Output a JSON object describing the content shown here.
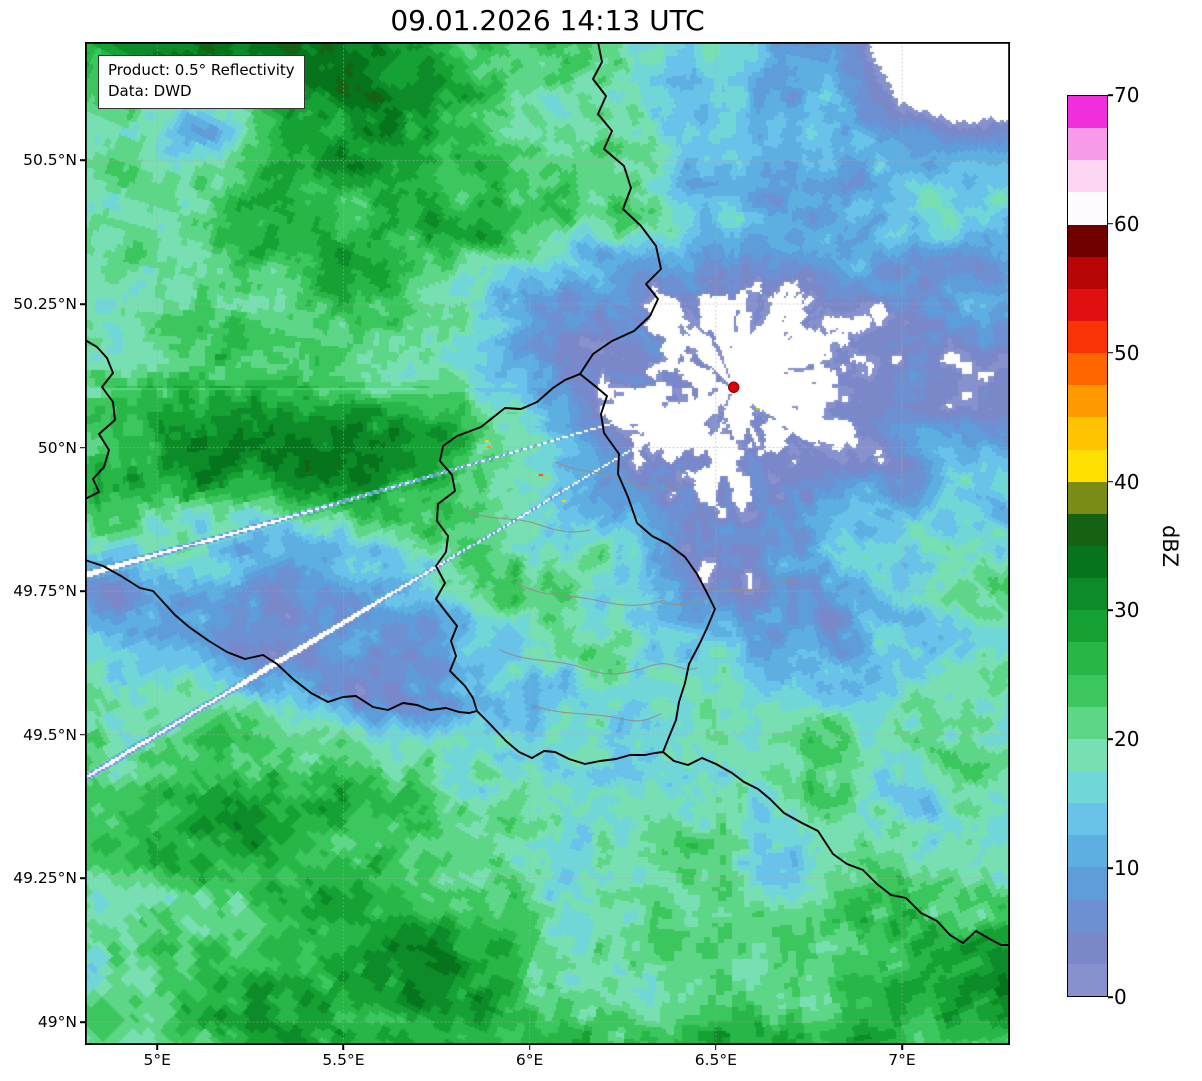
{
  "title": "09.01.2026 14:13 UTC",
  "info_box": {
    "line1": "Product: 0.5° Reflectivity",
    "line2": "Data: DWD"
  },
  "axes": {
    "extent": {
      "lon_min": 4.806,
      "lon_max": 7.29,
      "lat_min": 48.96,
      "lat_max": 50.706
    },
    "x_ticks": [
      {
        "label": "5°E",
        "lon": 5.0
      },
      {
        "label": "5.5°E",
        "lon": 5.5
      },
      {
        "label": "6°E",
        "lon": 6.0
      },
      {
        "label": "6.5°E",
        "lon": 6.5
      },
      {
        "label": "7°E",
        "lon": 7.0
      }
    ],
    "y_ticks": [
      {
        "label": "50.5°N",
        "lat": 50.5
      },
      {
        "label": "50.25°N",
        "lat": 50.25
      },
      {
        "label": "50°N",
        "lat": 50.0
      },
      {
        "label": "49.75°N",
        "lat": 49.75
      },
      {
        "label": "49.5°N",
        "lat": 49.5
      },
      {
        "label": "49.25°N",
        "lat": 49.25
      },
      {
        "label": "49°N",
        "lat": 49.0
      }
    ]
  },
  "colorbar": {
    "label": "dBZ",
    "min": 0,
    "max": 70,
    "segment_size_dbz": 2.5,
    "ticks": [
      0,
      10,
      20,
      30,
      40,
      50,
      60,
      70
    ],
    "colors_bottom_to_top": [
      "#8691cd",
      "#7a87c9",
      "#6c90d2",
      "#5f9dda",
      "#5dafe2",
      "#68c2e9",
      "#71d6d8",
      "#78dfb2",
      "#5ed687",
      "#3cc75e",
      "#27b647",
      "#16a134",
      "#0c8b28",
      "#06741d",
      "#156312",
      "#7a8c15",
      "#ffe000",
      "#ffc300",
      "#ff9900",
      "#ff6600",
      "#fa3305",
      "#e01010",
      "#b80606",
      "#700000",
      "#fdfbfe",
      "#fbd7f4",
      "#f79ae8",
      "#ef2fdc"
    ]
  },
  "map": {
    "radar_marker": {
      "lon": 6.548,
      "lat": 50.105,
      "color": "#dd0000",
      "edge_color": "#8b0000"
    },
    "no_data_color": "#ffffff",
    "country_border_color": "#000000",
    "district_border_color": "#8f8f8f",
    "grid_color": "#aaaaaa"
  },
  "chart_data": {
    "type": "heatmap",
    "title": "09.01.2026 14:13 UTC",
    "product": "0.5° Reflectivity",
    "source": "DWD",
    "value_unit": "dBZ",
    "value_range": [
      0,
      70
    ],
    "colorbar_ticks": [
      0,
      10,
      20,
      30,
      40,
      50,
      60,
      70
    ],
    "x_axis": {
      "label_type": "longitude",
      "ticks": [
        "5°E",
        "5.5°E",
        "6°E",
        "6.5°E",
        "7°E"
      ],
      "range": [
        4.81,
        7.29
      ]
    },
    "y_axis": {
      "label_type": "latitude",
      "ticks": [
        "49°N",
        "49.25°N",
        "49.5°N",
        "49.75°N",
        "50°N",
        "50.25°N",
        "50.5°N"
      ],
      "range": [
        48.96,
        50.71
      ]
    },
    "radar_site_marker": {
      "lon": 6.55,
      "lat": 50.1
    },
    "field_summary": "Widespread stratiform precipitation mostly 0-35 dBZ: banded green areas (15-30 dBZ) and slate/sky-blue areas (0-15 dBZ), white no-echo gaps near the radar site and the upper-right corner, radial spoke artifacts centered on the red radar marker"
  }
}
